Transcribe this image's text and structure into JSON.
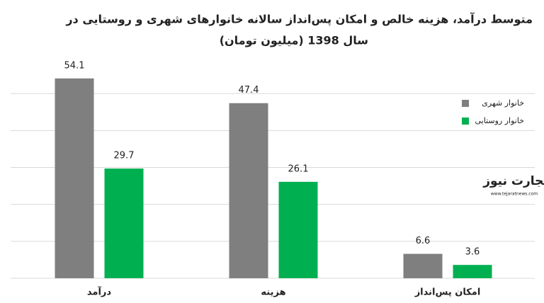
{
  "chart_data": {
    "type": "bar",
    "title": [
      "متوسط درآمد، هزینه خالص و امکان پس‌انداز سالانه خانوارهای شهری و روستایی در",
      "سال 1398 (میلیون تومان)"
    ],
    "categories": [
      "درآمد",
      "هزینه",
      "امکان پس‌انداز"
    ],
    "series": [
      {
        "name": "خانوار شهری",
        "color": "#7f7f7f",
        "values": [
          54.1,
          47.4,
          6.6
        ]
      },
      {
        "name": "خانوار روستایی",
        "color": "#00b050",
        "values": [
          29.7,
          26.1,
          3.6
        ]
      }
    ],
    "ylim": [
      0,
      60
    ],
    "yticks": [
      0,
      10,
      20,
      30,
      40,
      50
    ],
    "show_ytick_labels": false,
    "grid": true,
    "legend": "right",
    "watermark": {
      "name": "تجارت نیوز",
      "url": "www.tejaratnews.com"
    }
  }
}
